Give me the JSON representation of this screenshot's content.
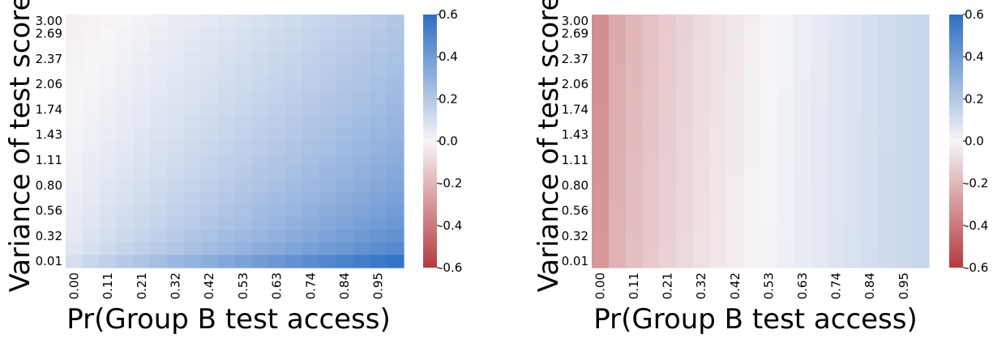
{
  "chart_data": [
    {
      "type": "heatmap",
      "title": "",
      "xlabel": "Pr(Group B test access)",
      "ylabel": "Variance of test score",
      "x_tick_labels": [
        "0.00",
        "0.11",
        "0.21",
        "0.32",
        "0.42",
        "0.53",
        "0.63",
        "0.74",
        "0.84",
        "0.95"
      ],
      "y_tick_labels": [
        "0.01",
        "0.32",
        "0.56",
        "0.80",
        "1.11",
        "1.43",
        "1.74",
        "2.06",
        "2.37",
        "2.69",
        "3.00"
      ],
      "n_cols": 20,
      "n_rows": 20,
      "colorbar": {
        "ticks": [
          "0.6",
          "0.4",
          "0.2",
          "0.0",
          "-0.2",
          "-0.4",
          "-0.6"
        ],
        "vmin": -0.6,
        "vmax": 0.6,
        "colormap": "red-white-blue"
      },
      "value_grid": {
        "description": "value at (x, variance)",
        "corners": {
          "x0_var_min": 0.1,
          "x1_var_min": 0.58,
          "x0_var_max": -0.02,
          "x1_var_max": 0.2
        }
      }
    },
    {
      "type": "heatmap",
      "title": "",
      "xlabel": "Pr(Group B test access)",
      "ylabel": "Variance of test score",
      "x_tick_labels": [
        "0.00",
        "0.11",
        "0.21",
        "0.32",
        "0.42",
        "0.53",
        "0.63",
        "0.74",
        "0.84",
        "0.95"
      ],
      "y_tick_labels": [
        "0.01",
        "0.32",
        "0.56",
        "0.80",
        "1.11",
        "1.43",
        "1.74",
        "2.06",
        "2.37",
        "2.69",
        "3.00"
      ],
      "n_cols": 20,
      "n_rows": 20,
      "colorbar": {
        "ticks": [
          "0.6",
          "0.4",
          "0.2",
          "0.0",
          "-0.2",
          "-0.4",
          "-0.6"
        ],
        "vmin": -0.6,
        "vmax": 0.6,
        "colormap": "red-white-blue"
      },
      "value_grid": {
        "description": "value at (x, variance)",
        "corners": {
          "x0": -0.3,
          "x1": 0.14
        }
      }
    }
  ]
}
